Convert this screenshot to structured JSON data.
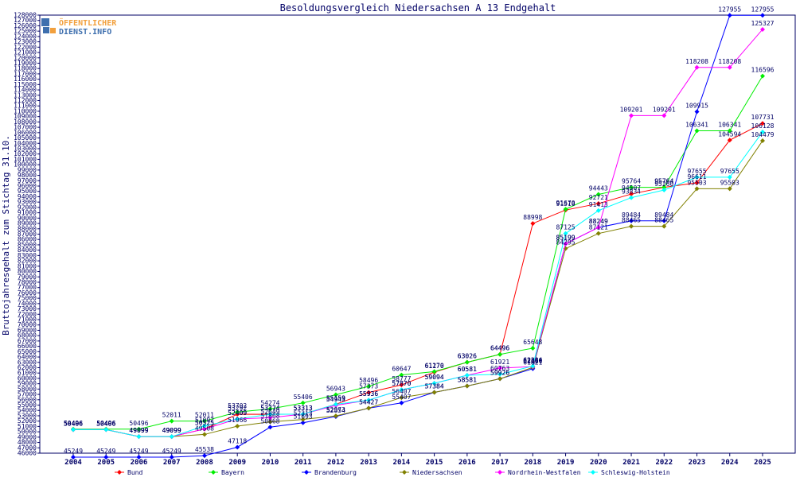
{
  "brand": {
    "logo_line1": "ÖFFENTLICHER",
    "logo_line2": "DIENST.INFO",
    "logo_color": "#f2a03d",
    "logo_bg": "#3e6fae"
  },
  "chart_data": {
    "type": "line",
    "title": "Besoldungsvergleich Niedersachsen A 13 Endgehalt",
    "xlabel": "",
    "ylabel": "Bruttojahresgehalt zum Stichtag 31.10.",
    "categories": [
      "2004",
      "2005",
      "2006",
      "2007",
      "2008",
      "2009",
      "2010",
      "2011",
      "2012",
      "2013",
      "2014",
      "2015",
      "2016",
      "2017",
      "2018",
      "2019",
      "2020",
      "2021",
      "2022",
      "2023",
      "2024",
      "2025"
    ],
    "ylim": [
      46000,
      128000
    ],
    "ytick_step": 1000,
    "grid": false,
    "legend_position": "bottom",
    "series": [
      {
        "name": "Bund",
        "color": "#ff0000",
        "values": [
          50406,
          50406,
          49099,
          49099,
          50525,
          53292,
          53274,
          53313,
          55159,
          57373,
          58777,
          61170,
          63026,
          64496,
          88998,
          91510,
          92721,
          94507,
          95764,
          96611,
          104594,
          107731
        ]
      },
      {
        "name": "Bayern",
        "color": "#00ee00",
        "values": [
          50496,
          50496,
          50496,
          52011,
          52011,
          53702,
          54274,
          55406,
          56943,
          58496,
          60647,
          61270,
          63026,
          64496,
          65648,
          91670,
          94443,
          95764,
          95764,
          106341,
          106341,
          116596
        ]
      },
      {
        "name": "Brandenburg",
        "color": "#0000ff",
        "values": [
          45249,
          45249,
          45249,
          45249,
          45538,
          47118,
          50868,
          51693,
          52854,
          54427,
          55407,
          57384,
          58581,
          59926,
          61821,
          85199,
          88249,
          89484,
          89484,
          109915,
          127955,
          127955
        ]
      },
      {
        "name": "Niedersachsen",
        "color": "#808000",
        "values": [
          50406,
          50406,
          49099,
          49099,
          49508,
          51066,
          51868,
          52313,
          52973,
          54427,
          56407,
          57384,
          58581,
          59926,
          62064,
          84295,
          87121,
          88465,
          88465,
          95503,
          95503,
          104479
        ]
      },
      {
        "name": "Nordrhein-Westfalen",
        "color": "#ff00ff",
        "values": [
          50406,
          50406,
          49099,
          49099,
          50525,
          52409,
          52649,
          53313,
          54943,
          55936,
          57870,
          59094,
          60581,
          61921,
          62210,
          85199,
          88249,
          109201,
          109201,
          118208,
          118208,
          125327
        ]
      },
      {
        "name": "Schleswig-Holstein",
        "color": "#00ffff",
        "values": [
          50406,
          50406,
          49099,
          49099,
          51092,
          52409,
          53274,
          53313,
          55159,
          55936,
          57870,
          59094,
          60581,
          60763,
          62304,
          87125,
          91413,
          93834,
          95260,
          97655,
          97655,
          106128
        ]
      }
    ]
  }
}
